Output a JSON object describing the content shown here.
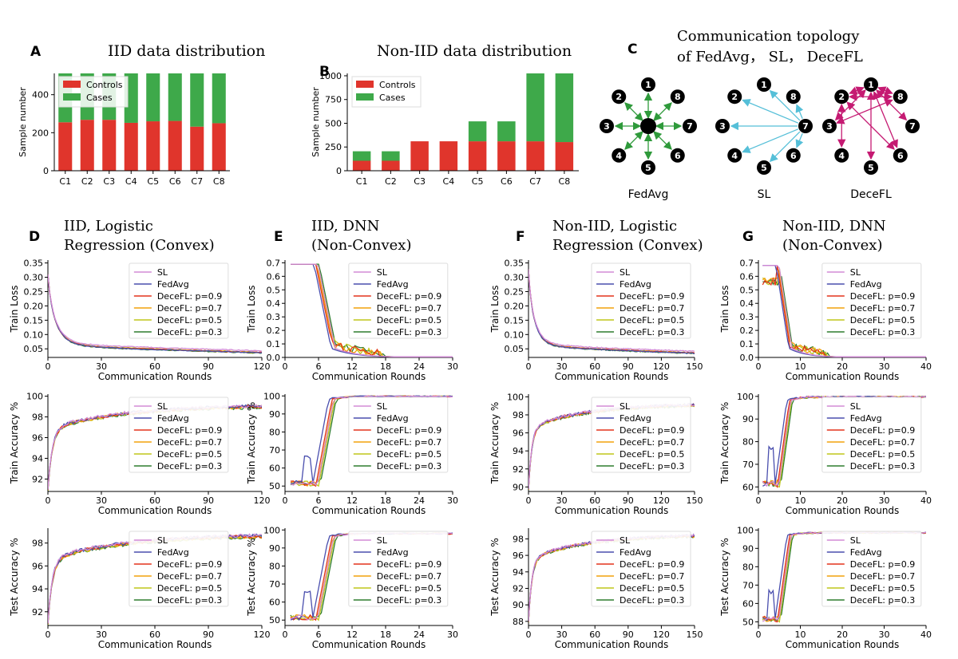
{
  "colors": {
    "controls": "#e0352c",
    "cases": "#3ea94a",
    "SL": "#d38bd6",
    "FedAvg": "#4a4fae",
    "p09": "#e3341b",
    "p07": "#f2a20c",
    "p05": "#bfc61a",
    "p03": "#2f7d2f",
    "fedavg_edge": "#2f9a3b",
    "sl_edge": "#55bfd8",
    "decefl_edge": "#c51a72"
  },
  "legend_series": [
    "SL",
    "FedAvg",
    "DeceFL: p=0.9",
    "DeceFL: p=0.7",
    "DeceFL: p=0.5",
    "DeceFL: p=0.3"
  ],
  "legend_keys": [
    "SL",
    "FedAvg",
    "p09",
    "p07",
    "p05",
    "p03"
  ],
  "bar_legend": [
    "Controls",
    "Cases"
  ],
  "panels": {
    "A": {
      "letter": "A",
      "title": "IID data distribution"
    },
    "B": {
      "letter": "B",
      "title": "Non-IID data distribution"
    },
    "C": {
      "letter": "C",
      "title_line1": "Communication topology",
      "title_line2": "of FedAvg， SL， DeceFL",
      "labels": [
        "FedAvg",
        "SL",
        "DeceFL"
      ]
    },
    "D": {
      "letter": "D",
      "title_line1": "IID, Logistic",
      "title_line2": "Regression (Convex)"
    },
    "E": {
      "letter": "E",
      "title_line1": "IID, DNN",
      "title_line2": "(Non-Convex)"
    },
    "F": {
      "letter": "F",
      "title_line1": "Non-IID, Logistic",
      "title_line2": "Regression (Convex)"
    },
    "G": {
      "letter": "G",
      "title_line1": "Non-IID, DNN",
      "title_line2": "(Non-Convex)"
    }
  },
  "chart_data": [
    {
      "id": "A",
      "type": "bar",
      "stacked": true,
      "categories": [
        "C1",
        "C2",
        "C3",
        "C4",
        "C5",
        "C6",
        "C7",
        "C8"
      ],
      "series": [
        {
          "name": "Controls",
          "values": [
            255,
            268,
            268,
            252,
            260,
            262,
            232,
            250
          ]
        },
        {
          "name": "Cases",
          "values": [
            257,
            244,
            244,
            260,
            252,
            250,
            280,
            262
          ]
        }
      ],
      "ylabel": "Sample number",
      "ylim": [
        0,
        512
      ],
      "yticks": [
        0,
        200,
        400
      ],
      "legend": "top-left"
    },
    {
      "id": "B",
      "type": "bar",
      "stacked": true,
      "categories": [
        "C1",
        "C2",
        "C3",
        "C4",
        "C5",
        "C6",
        "C7",
        "C8"
      ],
      "series": [
        {
          "name": "Controls",
          "values": [
            105,
            105,
            310,
            310,
            310,
            310,
            310,
            302
          ]
        },
        {
          "name": "Cases",
          "values": [
            100,
            100,
            0,
            0,
            210,
            210,
            715,
            723
          ]
        }
      ],
      "ylabel": "Sample number",
      "ylim": [
        0,
        1025
      ],
      "yticks": [
        0,
        250,
        500,
        750,
        1000
      ],
      "legend": "top-left"
    },
    {
      "id": "C",
      "type": "diagram",
      "nodes": [
        "1",
        "2",
        "3",
        "4",
        "5",
        "6",
        "7",
        "8"
      ],
      "topologies": {
        "FedAvg": {
          "hub": "server",
          "edges": "all nodes to central server (bidirectional)"
        },
        "SL": {
          "hub": "7",
          "edges": "all nodes to node 7"
        },
        "DeceFL": {
          "edges": [
            [
              "1",
              "2"
            ],
            [
              "2",
              "8"
            ],
            [
              "1",
              "8"
            ],
            [
              "1",
              "3"
            ],
            [
              "1",
              "6"
            ],
            [
              "1",
              "7"
            ],
            [
              "2",
              "4"
            ],
            [
              "2",
              "6"
            ],
            [
              "3",
              "8"
            ],
            [
              "1",
              "5"
            ]
          ]
        }
      }
    },
    {
      "id": "D1",
      "type": "line",
      "ylabel": "Train Loss",
      "xlabel": "Communication Rounds",
      "xlim": [
        0,
        120
      ],
      "ylim": [
        0.02,
        0.36
      ],
      "xticks": [
        0,
        30,
        60,
        90,
        120
      ],
      "yticks": [
        0.05,
        0.1,
        0.15,
        0.2,
        0.25,
        0.3,
        0.35
      ],
      "ytick_labels": [
        "0.05",
        "0.10",
        "0.15",
        "0.20",
        "0.25",
        "0.30",
        "0.35"
      ],
      "curve": "loss_convex",
      "start": 0.33,
      "end": {
        "SL": 0.042,
        "FedAvg": 0.035,
        "p09": 0.036,
        "p07": 0.036,
        "p05": 0.037,
        "p03": 0.034
      }
    },
    {
      "id": "D2",
      "type": "line",
      "ylabel": "Train Accuracy %",
      "xlabel": "Communication Rounds",
      "xlim": [
        0,
        120
      ],
      "ylim": [
        90.8,
        100.2
      ],
      "xticks": [
        0,
        30,
        60,
        90,
        120
      ],
      "yticks": [
        92,
        94,
        96,
        98,
        100
      ],
      "ytick_labels": [
        "92",
        "94",
        "96",
        "98",
        "100"
      ],
      "curve": "acc_convex",
      "start": 91.0,
      "end": 99.2
    },
    {
      "id": "D3",
      "type": "line",
      "ylabel": "Test Accuracy %",
      "xlabel": "Communication Rounds",
      "xlim": [
        0,
        120
      ],
      "ylim": [
        90.8,
        99.3
      ],
      "xticks": [
        0,
        30,
        60,
        90,
        120
      ],
      "yticks": [
        92,
        94,
        96,
        98
      ],
      "ytick_labels": [
        "92",
        "94",
        "96",
        "98"
      ],
      "curve": "acc_convex",
      "start": 91.0,
      "end": 98.8
    },
    {
      "id": "E1",
      "type": "line",
      "ylabel": "Train Loss",
      "xlabel": "Communication Rounds",
      "xlim": [
        0,
        30
      ],
      "ylim": [
        0,
        0.72
      ],
      "xticks": [
        0,
        6,
        12,
        18,
        24,
        30
      ],
      "yticks": [
        0,
        0.1,
        0.2,
        0.3,
        0.4,
        0.5,
        0.6,
        0.7
      ],
      "ytick_labels": [
        "0.0",
        "0.1",
        "0.2",
        "0.3",
        "0.4",
        "0.5",
        "0.6",
        "0.7"
      ],
      "curve": "loss_dnn",
      "start": 0.69,
      "drop_at": 7,
      "end": 0.005
    },
    {
      "id": "E2",
      "type": "line",
      "ylabel": "Train Accuracy %",
      "xlabel": "Communication Rounds",
      "xlim": [
        0,
        30
      ],
      "ylim": [
        47,
        101
      ],
      "xticks": [
        0,
        6,
        12,
        18,
        24,
        30
      ],
      "yticks": [
        50,
        60,
        70,
        80,
        90,
        100
      ],
      "ytick_labels": [
        "50",
        "60",
        "70",
        "80",
        "90",
        "100"
      ],
      "curve": "acc_dnn",
      "start": 50,
      "rise_at": 7,
      "end": 99.8
    },
    {
      "id": "E3",
      "type": "line",
      "ylabel": "Test Accuracy %",
      "xlabel": "Communication Rounds",
      "xlim": [
        0,
        30
      ],
      "ylim": [
        47,
        101
      ],
      "xticks": [
        0,
        6,
        12,
        18,
        24,
        30
      ],
      "yticks": [
        50,
        60,
        70,
        80,
        90,
        100
      ],
      "ytick_labels": [
        "50",
        "60",
        "70",
        "80",
        "90",
        "100"
      ],
      "curve": "acc_dnn",
      "start": 50,
      "rise_at": 7,
      "end": 98.0
    },
    {
      "id": "F1",
      "type": "line",
      "ylabel": "Train Loss",
      "xlabel": "Communication Rounds",
      "xlim": [
        0,
        150
      ],
      "ylim": [
        0.02,
        0.36
      ],
      "xticks": [
        0,
        30,
        60,
        90,
        120,
        150
      ],
      "yticks": [
        0.05,
        0.1,
        0.15,
        0.2,
        0.25,
        0.3,
        0.35
      ],
      "ytick_labels": [
        "0.05",
        "0.10",
        "0.15",
        "0.20",
        "0.25",
        "0.30",
        "0.35"
      ],
      "curve": "loss_convex",
      "start": 0.35,
      "end": {
        "SL": 0.04,
        "FedAvg": 0.033,
        "p09": 0.034,
        "p07": 0.034,
        "p05": 0.035,
        "p03": 0.032
      }
    },
    {
      "id": "F2",
      "type": "line",
      "ylabel": "Train Accuracy %",
      "xlabel": "Communication Rounds",
      "xlim": [
        0,
        150
      ],
      "ylim": [
        89.5,
        100.3
      ],
      "xticks": [
        0,
        30,
        60,
        90,
        120,
        150
      ],
      "yticks": [
        90,
        92,
        94,
        96,
        98,
        100
      ],
      "ytick_labels": [
        "90",
        "92",
        "94",
        "96",
        "98",
        "100"
      ],
      "curve": "acc_convex",
      "start": 89.8,
      "end": 99.3
    },
    {
      "id": "F3",
      "type": "line",
      "ylabel": "Test Accuracy %",
      "xlabel": "Communication Rounds",
      "xlim": [
        0,
        150
      ],
      "ylim": [
        87.5,
        99.3
      ],
      "xticks": [
        0,
        30,
        60,
        90,
        120,
        150
      ],
      "yticks": [
        88,
        90,
        92,
        94,
        96,
        98
      ],
      "ytick_labels": [
        "88",
        "90",
        "92",
        "94",
        "96",
        "98"
      ],
      "curve": "acc_convex",
      "start": 88.0,
      "end": 98.6
    },
    {
      "id": "G1",
      "type": "line",
      "ylabel": "Train Loss",
      "xlabel": "Communication Rounds",
      "xlim": [
        0,
        40
      ],
      "ylim": [
        0,
        0.72
      ],
      "xticks": [
        0,
        10,
        20,
        30,
        40
      ],
      "yticks": [
        0,
        0.1,
        0.2,
        0.3,
        0.4,
        0.5,
        0.6,
        0.7
      ],
      "ytick_labels": [
        "0.0",
        "0.1",
        "0.2",
        "0.3",
        "0.4",
        "0.5",
        "0.6",
        "0.7"
      ],
      "curve": "loss_dnn_noniid",
      "start": 0.68,
      "drop_at": 6,
      "end": 0.005
    },
    {
      "id": "G2",
      "type": "line",
      "ylabel": "Train Accuracy %",
      "xlabel": "Communication Rounds",
      "xlim": [
        0,
        40
      ],
      "ylim": [
        58,
        101
      ],
      "xticks": [
        0,
        10,
        20,
        30,
        40
      ],
      "yticks": [
        60,
        70,
        80,
        90,
        100
      ],
      "ytick_labels": [
        "60",
        "70",
        "80",
        "90",
        "100"
      ],
      "curve": "acc_dnn_noniid",
      "start": 60,
      "rise_at": 6,
      "end": 99.8
    },
    {
      "id": "G3",
      "type": "line",
      "ylabel": "Test Accuracy %",
      "xlabel": "Communication Rounds",
      "xlim": [
        0,
        40
      ],
      "ylim": [
        48,
        101
      ],
      "xticks": [
        0,
        10,
        20,
        30,
        40
      ],
      "yticks": [
        50,
        60,
        70,
        80,
        90,
        100
      ],
      "ytick_labels": [
        "50",
        "60",
        "70",
        "80",
        "90",
        "100"
      ],
      "curve": "acc_dnn_noniid",
      "start": 50,
      "rise_at": 6,
      "end": 98.5
    }
  ]
}
